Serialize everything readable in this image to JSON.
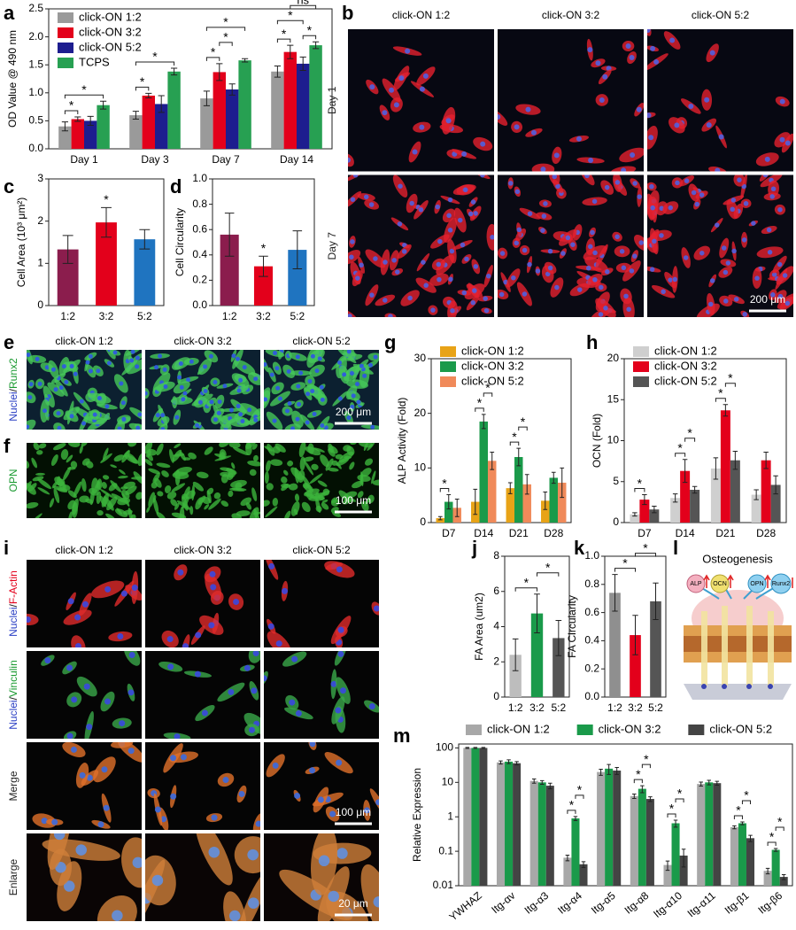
{
  "chart_data": [
    {
      "panel": "a",
      "type": "bar",
      "ylabel": "OD Value @ 490 nm",
      "categories": [
        "Day 1",
        "Day 3",
        "Day 7",
        "Day 14"
      ],
      "series": [
        {
          "name": "click-ON 1:2",
          "color": "#9a9a9a",
          "values": [
            0.4,
            0.6,
            0.9,
            1.38
          ],
          "errors": [
            0.08,
            0.07,
            0.13,
            0.1
          ]
        },
        {
          "name": "click-ON 3:2",
          "color": "#e3001b",
          "values": [
            0.53,
            0.95,
            1.37,
            1.73
          ],
          "errors": [
            0.04,
            0.04,
            0.15,
            0.12
          ]
        },
        {
          "name": "click-ON 5:2",
          "color": "#1d1d8f",
          "values": [
            0.5,
            0.8,
            1.06,
            1.52
          ],
          "errors": [
            0.08,
            0.15,
            0.1,
            0.12
          ]
        },
        {
          "name": "TCPS",
          "color": "#27a052",
          "values": [
            0.78,
            1.38,
            1.58,
            1.85
          ],
          "errors": [
            0.07,
            0.06,
            0.03,
            0.06
          ]
        }
      ],
      "ylim": [
        0,
        2.5
      ],
      "yticks": [
        {
          "value": 0,
          "label": "0.0"
        },
        0.5,
        {
          "value": 1,
          "label": "1.0"
        },
        1.5,
        {
          "value": 2,
          "label": "2.0"
        },
        2.5
      ],
      "legend": "upper-left",
      "significance": [
        {
          "label": "*",
          "category": "Day 1",
          "pair": [
            "click-ON 1:2",
            "click-ON 3:2"
          ]
        },
        {
          "label": "*",
          "category": "Day 1",
          "pair": [
            "click-ON 1:2",
            "TCPS"
          ]
        },
        {
          "label": "*",
          "category": "Day 3",
          "pair": [
            "click-ON 1:2",
            "click-ON 3:2"
          ]
        },
        {
          "label": "*",
          "category": "Day 3",
          "pair": [
            "click-ON 1:2",
            "TCPS"
          ]
        },
        {
          "label": "*",
          "category": "Day 7",
          "pair": [
            "click-ON 1:2",
            "click-ON 3:2"
          ]
        },
        {
          "label": "*",
          "category": "Day 7",
          "pair": [
            "click-ON 3:2",
            "click-ON 5:2"
          ]
        },
        {
          "label": "*",
          "category": "Day 7",
          "pair": [
            "click-ON 1:2",
            "TCPS"
          ]
        },
        {
          "label": "*",
          "category": "Day 14",
          "pair": [
            "click-ON 1:2",
            "click-ON 3:2"
          ]
        },
        {
          "label": "*",
          "category": "Day 14",
          "pair": [
            "click-ON 5:2",
            "TCPS"
          ]
        },
        {
          "label": "*",
          "category": "Day 14",
          "pair": [
            "click-ON 1:2",
            "click-ON 5:2"
          ]
        },
        {
          "label": "ns",
          "category": "Day 14",
          "pair": [
            "click-ON 3:2",
            "TCPS"
          ]
        }
      ]
    },
    {
      "panel": "c",
      "type": "bar",
      "ylabel": "Cell Area (10³ μm²)",
      "categories": [
        "1:2",
        "3:2",
        "5:2"
      ],
      "values": [
        1.33,
        1.97,
        1.57
      ],
      "errors": [
        0.33,
        0.35,
        0.23
      ],
      "colors": [
        "#8b1d4d",
        "#e3001b",
        "#1f74c0"
      ],
      "ylim": [
        0,
        3
      ],
      "yticks": [
        0,
        1,
        2,
        3
      ],
      "significance": [
        {
          "label": "*",
          "category": "3:2"
        }
      ]
    },
    {
      "panel": "d",
      "type": "bar",
      "ylabel": "Cell Circularity",
      "categories": [
        "1:2",
        "3:2",
        "5:2"
      ],
      "values": [
        0.56,
        0.31,
        0.44
      ],
      "errors": [
        0.17,
        0.08,
        0.15
      ],
      "colors": [
        "#8b1d4d",
        "#e3001b",
        "#1f74c0"
      ],
      "ylim": [
        0,
        1
      ],
      "yticks": [
        {
          "value": 0,
          "label": "0.0"
        },
        0.2,
        0.4,
        0.6,
        0.8,
        {
          "value": 1,
          "label": "1.0"
        }
      ],
      "significance": [
        {
          "label": "*",
          "category": "3:2"
        }
      ]
    },
    {
      "panel": "g",
      "type": "bar",
      "ylabel": "ALP Activity (Fold)",
      "categories": [
        "D7",
        "D14",
        "D21",
        "D28"
      ],
      "series": [
        {
          "name": "click-ON 1:2",
          "color": "#e8a317",
          "values": [
            0.8,
            3.8,
            6.3,
            4.0
          ],
          "errors": [
            0.3,
            2.3,
            1.0,
            1.6
          ]
        },
        {
          "name": "click-ON 3:2",
          "color": "#1a9a4a",
          "values": [
            3.8,
            18.5,
            12.0,
            8.2
          ],
          "errors": [
            1.3,
            1.3,
            1.6,
            1.0
          ]
        },
        {
          "name": "click-ON 5:2",
          "color": "#f08a5a",
          "values": [
            2.7,
            11.3,
            7.0,
            7.3
          ],
          "errors": [
            1.6,
            1.6,
            1.8,
            2.7
          ]
        }
      ],
      "ylim": [
        0,
        30
      ],
      "yticks": [
        0,
        10,
        20,
        30
      ],
      "legend": "upper-left",
      "significance": [
        {
          "label": "*",
          "category": "D7",
          "pair": [
            "click-ON 1:2",
            "click-ON 3:2"
          ]
        },
        {
          "label": "*",
          "category": "D14",
          "pair": [
            "click-ON 1:2",
            "click-ON 3:2"
          ]
        },
        {
          "label": "*",
          "category": "D14",
          "pair": [
            "click-ON 3:2",
            "click-ON 5:2"
          ]
        },
        {
          "label": "*",
          "category": "D21",
          "pair": [
            "click-ON 1:2",
            "click-ON 3:2"
          ]
        },
        {
          "label": "*",
          "category": "D21",
          "pair": [
            "click-ON 3:2",
            "click-ON 5:2"
          ]
        }
      ]
    },
    {
      "panel": "h",
      "type": "bar",
      "ylabel": "OCN (Fold)",
      "categories": [
        "D7",
        "D14",
        "D21",
        "D28"
      ],
      "series": [
        {
          "name": "click-ON 1:2",
          "color": "#cfcfcf",
          "values": [
            1.0,
            3.0,
            6.6,
            3.4
          ],
          "errors": [
            0.2,
            0.5,
            1.3,
            0.6
          ]
        },
        {
          "name": "click-ON 3:2",
          "color": "#e3001b",
          "values": [
            2.8,
            6.3,
            13.7,
            7.6
          ],
          "errors": [
            0.6,
            1.4,
            0.7,
            1.0
          ]
        },
        {
          "name": "click-ON 5:2",
          "color": "#555555",
          "values": [
            1.6,
            4.0,
            7.6,
            4.6
          ],
          "errors": [
            0.4,
            0.4,
            1.1,
            1.1
          ]
        }
      ],
      "ylim": [
        0,
        20
      ],
      "yticks": [
        0,
        5,
        10,
        15,
        20
      ],
      "legend": "upper-left",
      "significance": [
        {
          "label": "*",
          "category": "D7",
          "pair": [
            "click-ON 1:2",
            "click-ON 3:2"
          ]
        },
        {
          "label": "*",
          "category": "D14",
          "pair": [
            "click-ON 1:2",
            "click-ON 3:2"
          ]
        },
        {
          "label": "*",
          "category": "D14",
          "pair": [
            "click-ON 3:2",
            "click-ON 5:2"
          ]
        },
        {
          "label": "*",
          "category": "D21",
          "pair": [
            "click-ON 1:2",
            "click-ON 3:2"
          ]
        },
        {
          "label": "*",
          "category": "D21",
          "pair": [
            "click-ON 3:2",
            "click-ON 5:2"
          ]
        }
      ]
    },
    {
      "panel": "j",
      "type": "bar",
      "ylabel": "FA Area (um2)",
      "categories": [
        "1:2",
        "3:2",
        "5:2"
      ],
      "values": [
        2.4,
        4.75,
        3.35
      ],
      "errors": [
        0.9,
        1.1,
        1.0
      ],
      "colors": [
        "#bdbdbd",
        "#1a9a4a",
        "#555555"
      ],
      "ylim": [
        0,
        8
      ],
      "yticks": [
        0,
        2,
        4,
        6,
        8
      ],
      "significance": [
        {
          "label": "*",
          "pair": [
            "1:2",
            "3:2"
          ]
        },
        {
          "label": "*",
          "pair": [
            "3:2",
            "5:2"
          ]
        }
      ]
    },
    {
      "panel": "k",
      "type": "bar",
      "ylabel": "FA Circularity",
      "categories": [
        "1:2",
        "3:2",
        "5:2"
      ],
      "values": [
        0.74,
        0.44,
        0.68
      ],
      "errors": [
        0.13,
        0.14,
        0.13
      ],
      "colors": [
        "#8f8f8f",
        "#e3001b",
        "#555555"
      ],
      "ylim": [
        0,
        1
      ],
      "yticks": [
        {
          "value": 0,
          "label": "0.0"
        },
        0.2,
        0.4,
        0.6,
        0.8,
        {
          "value": 1,
          "label": "1.0"
        }
      ],
      "significance": [
        {
          "label": "*",
          "pair": [
            "1:2",
            "3:2"
          ]
        },
        {
          "label": "*",
          "pair": [
            "3:2",
            "5:2"
          ]
        }
      ]
    },
    {
      "panel": "m",
      "type": "bar",
      "ylabel": "Relative Expression",
      "log_scale": true,
      "categories": [
        "YWHAZ",
        "Itg-αv",
        "Itg-α3",
        "Itg-α4",
        "Itg-α5",
        "Itg-α8",
        "Itg-α10",
        "Itg-α11",
        "Itg-β1",
        "Itg-β6"
      ],
      "series": [
        {
          "name": "click-ON 1:2",
          "color": "#a8a8a8",
          "values": [
            100,
            38,
            11,
            0.065,
            20,
            4.0,
            0.04,
            9,
            0.5,
            0.027
          ],
          "errors": [
            3,
            4,
            1.5,
            0.012,
            4,
            0.6,
            0.012,
            1.2,
            0.05,
            0.005
          ]
        },
        {
          "name": "click-ON 3:2",
          "color": "#1a9a4a",
          "values": [
            100,
            40,
            10,
            0.9,
            25,
            6.5,
            0.65,
            10,
            0.65,
            0.11
          ],
          "errors": [
            3,
            5,
            1.2,
            0.12,
            8,
            1.5,
            0.15,
            1.5,
            0.06,
            0.01
          ]
        },
        {
          "name": "click-ON 5:2",
          "color": "#444444",
          "values": [
            100,
            36,
            8,
            0.042,
            22,
            3.3,
            0.075,
            9.5,
            0.24,
            0.018
          ],
          "errors": [
            3,
            4,
            1.5,
            0.008,
            5,
            0.5,
            0.04,
            1.2,
            0.05,
            0.003
          ]
        }
      ],
      "ylim": [
        0.01,
        130
      ],
      "yticks": [
        0.01,
        0.1,
        1,
        10,
        100
      ],
      "legend": "top",
      "significance": [
        {
          "label": "*",
          "category": "Itg-α4",
          "pair": [
            "click-ON 1:2",
            "click-ON 3:2"
          ]
        },
        {
          "label": "*",
          "category": "Itg-α4",
          "pair": [
            "click-ON 3:2",
            "click-ON 5:2"
          ]
        },
        {
          "label": "*",
          "category": "Itg-α8",
          "pair": [
            "click-ON 1:2",
            "click-ON 3:2"
          ]
        },
        {
          "label": "*",
          "category": "Itg-α8",
          "pair": [
            "click-ON 3:2",
            "click-ON 5:2"
          ]
        },
        {
          "label": "*",
          "category": "Itg-α10",
          "pair": [
            "click-ON 1:2",
            "click-ON 3:2"
          ]
        },
        {
          "label": "*",
          "category": "Itg-α10",
          "pair": [
            "click-ON 3:2",
            "click-ON 5:2"
          ]
        },
        {
          "label": "*",
          "category": "Itg-β1",
          "pair": [
            "click-ON 1:2",
            "click-ON 3:2"
          ]
        },
        {
          "label": "*",
          "category": "Itg-β1",
          "pair": [
            "click-ON 3:2",
            "click-ON 5:2"
          ]
        },
        {
          "label": "*",
          "category": "Itg-β6",
          "pair": [
            "click-ON 1:2",
            "click-ON 3:2"
          ]
        },
        {
          "label": "*",
          "category": "Itg-β6",
          "pair": [
            "click-ON 3:2",
            "click-ON 5:2"
          ]
        }
      ]
    }
  ],
  "image_panels": [
    {
      "panel": "b",
      "columns": [
        "click-ON 1:2",
        "click-ON 3:2",
        "click-ON 5:2"
      ],
      "rows": [
        {
          "parts": [
            "Day 1"
          ],
          "colors": [
            "#222222"
          ]
        },
        {
          "parts": [
            "Day 7"
          ],
          "colors": [
            "#222222"
          ]
        }
      ],
      "scale_bars": [
        {
          "row": 1,
          "label": "200 μm"
        }
      ]
    },
    {
      "panel": "e",
      "columns": [
        "click-ON 1:2",
        "click-ON 3:2",
        "click-ON 5:2"
      ],
      "rows": [
        {
          "parts": [
            "Nuclei",
            "/",
            "Runx2"
          ],
          "colors": [
            "#2a3fc4",
            "#222222",
            "#1a9a30"
          ]
        }
      ],
      "scale_bars": [
        {
          "row": 0,
          "label": "200 μm"
        }
      ]
    },
    {
      "panel": "f",
      "rows": [
        {
          "parts": [
            "OPN"
          ],
          "colors": [
            "#1a9a30"
          ]
        }
      ],
      "scale_bars": [
        {
          "row": 0,
          "label": "100 μm"
        }
      ]
    },
    {
      "panel": "i",
      "columns": [
        "click-ON 1:2",
        "click-ON 3:2",
        "click-ON 5:2"
      ],
      "rows": [
        {
          "parts": [
            "Nuclei",
            "/",
            "F-Actin"
          ],
          "colors": [
            "#2a3fc4",
            "#222222",
            "#e3001b"
          ]
        },
        {
          "parts": [
            "Nuclei",
            "/",
            "Vinculin"
          ],
          "colors": [
            "#2a3fc4",
            "#222222",
            "#1a9a30"
          ]
        },
        {
          "parts": [
            "Merge"
          ],
          "colors": [
            "#222222"
          ]
        },
        {
          "parts": [
            "Enlarge"
          ],
          "colors": [
            "#222222"
          ]
        }
      ],
      "scale_bars": [
        {
          "row": 2,
          "label": "100 μm"
        },
        {
          "row": 3,
          "label": "20 μm"
        }
      ]
    }
  ],
  "schematic": {
    "panel": "l",
    "title": "Osteogenesis",
    "markers": [
      "ALP",
      "OCN",
      "OPN",
      "Runx2"
    ]
  }
}
